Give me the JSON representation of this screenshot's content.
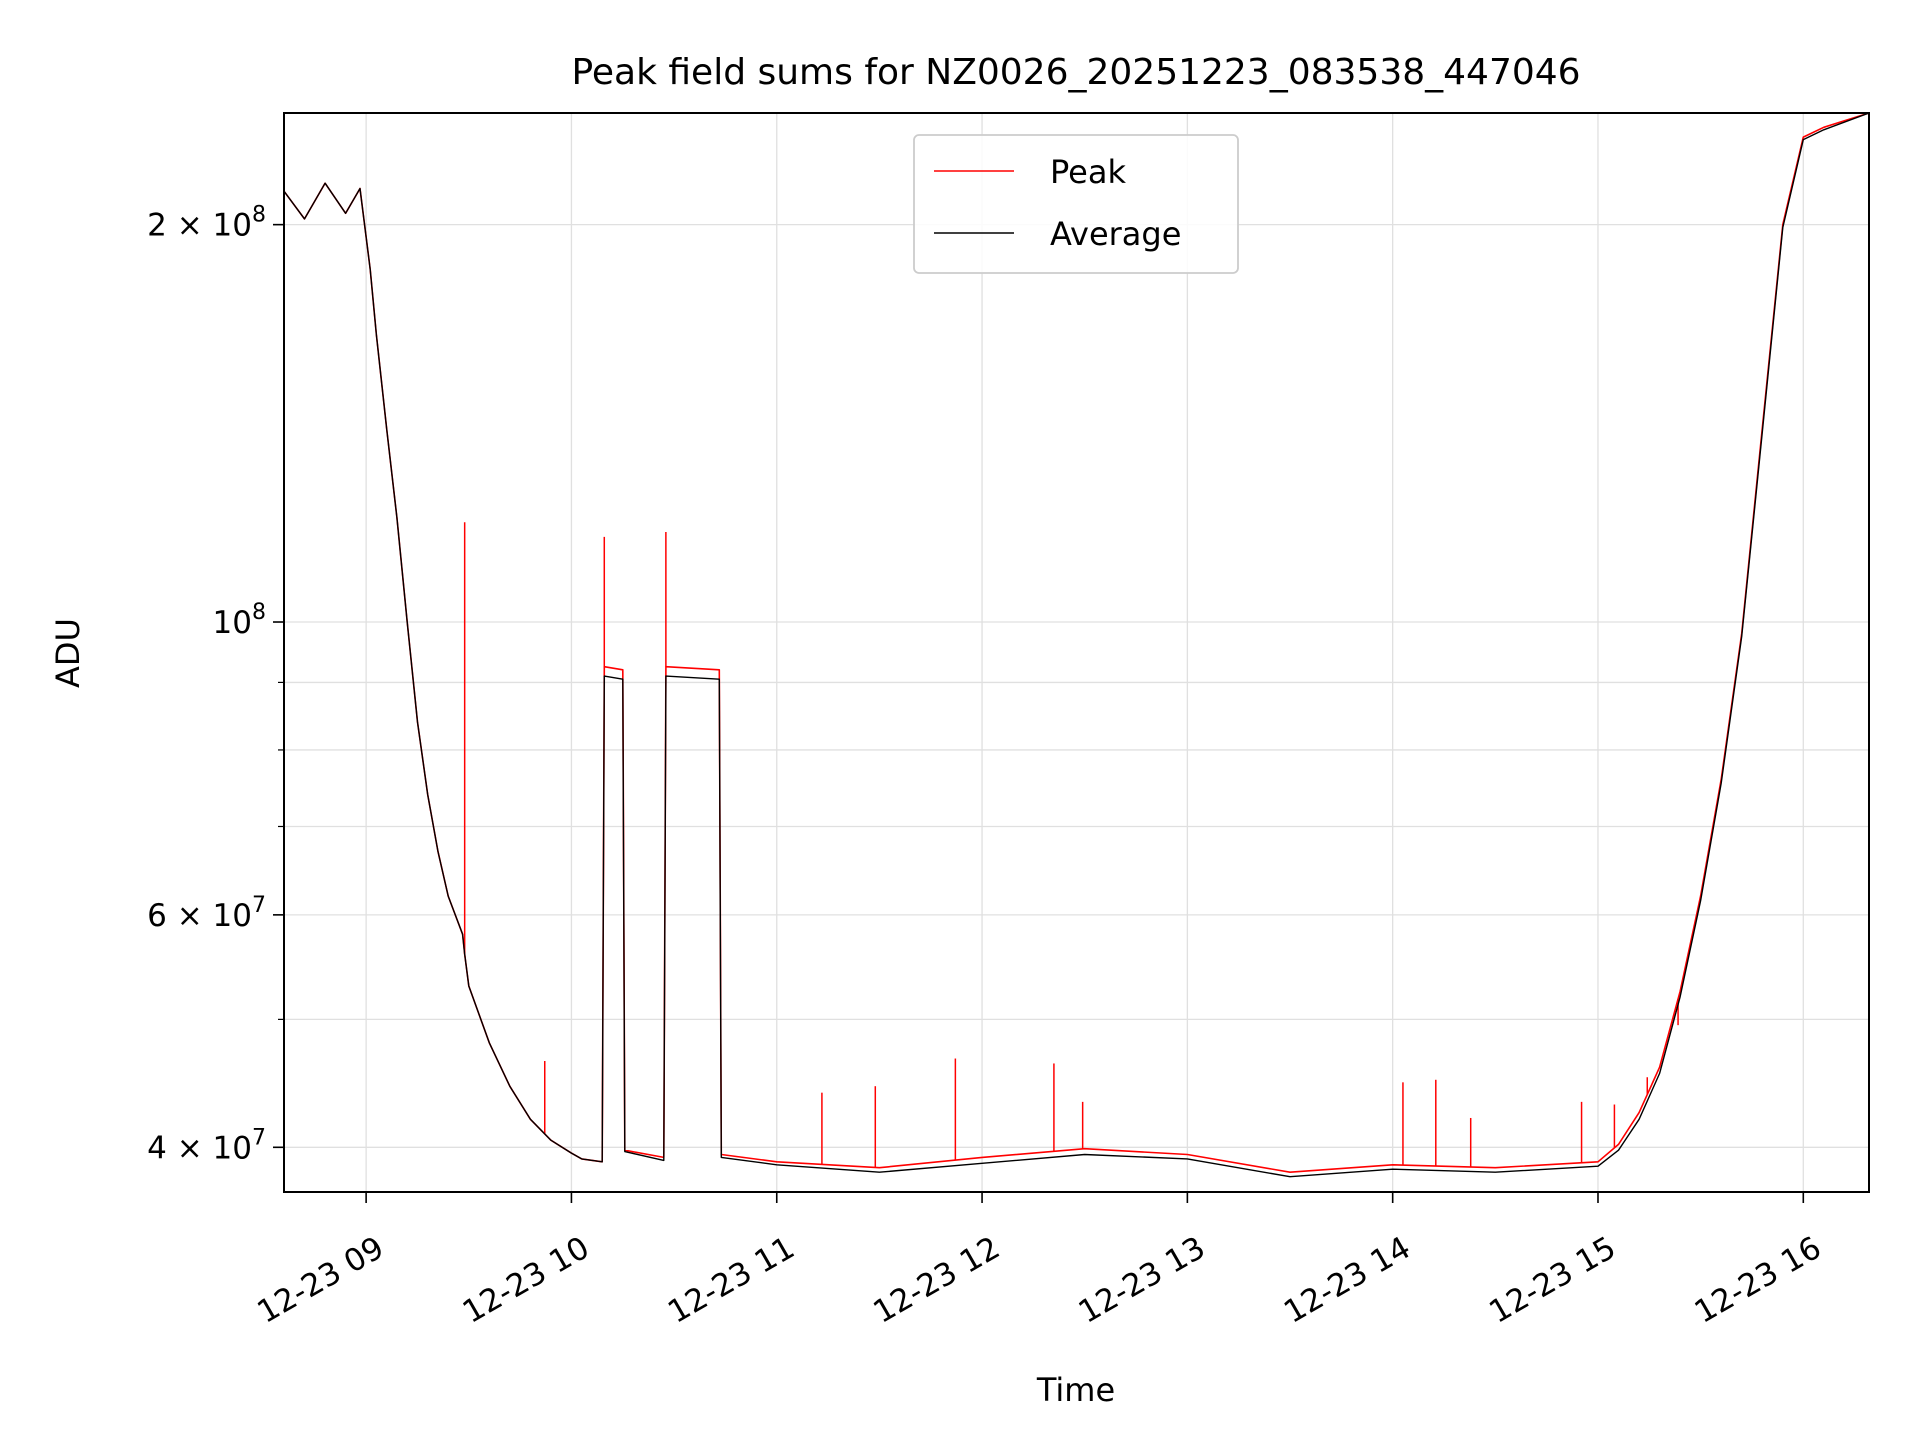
{
  "chart_data": {
    "type": "line",
    "title": "Peak field sums for NZ0026_20251223_083538_447046",
    "xlabel": "Time",
    "ylabel": "ADU",
    "yscale": "log",
    "grid": true,
    "legend_position": "top-center",
    "xlim": [
      8.6,
      16.32
    ],
    "ylim": [
      37000000,
      243000000
    ],
    "x_ticks": [
      {
        "value": 9,
        "label": "12-23 09"
      },
      {
        "value": 10,
        "label": "12-23 10"
      },
      {
        "value": 11,
        "label": "12-23 11"
      },
      {
        "value": 12,
        "label": "12-23 12"
      },
      {
        "value": 13,
        "label": "12-23 13"
      },
      {
        "value": 14,
        "label": "12-23 14"
      },
      {
        "value": 15,
        "label": "12-23 15"
      },
      {
        "value": 16,
        "label": "12-23 16"
      }
    ],
    "y_ticks": [
      {
        "value": 40000000,
        "mantissa": "4",
        "exponent": "7"
      },
      {
        "value": 60000000,
        "mantissa": "6",
        "exponent": "7"
      },
      {
        "value": 100000000,
        "mantissa": "",
        "exponent": "8"
      },
      {
        "value": 200000000,
        "mantissa": "2",
        "exponent": "8"
      }
    ],
    "y_minor_ticks": [
      50000000,
      70000000,
      80000000,
      90000000
    ],
    "series": [
      {
        "name": "Peak",
        "color": "#ff0000",
        "x": [
          8.6,
          8.7,
          8.8,
          8.9,
          8.97,
          9.02,
          9.05,
          9.1,
          9.15,
          9.2,
          9.25,
          9.3,
          9.35,
          9.4,
          9.47,
          9.48,
          9.5,
          9.6,
          9.7,
          9.8,
          9.9,
          10.0,
          10.05,
          10.15,
          10.16,
          10.25,
          10.26,
          10.45,
          10.46,
          10.72,
          10.73,
          11.0,
          11.5,
          12.0,
          12.5,
          13.0,
          13.5,
          14.0,
          14.5,
          15.0,
          15.1,
          15.2,
          15.3,
          15.4,
          15.5,
          15.6,
          15.7,
          15.8,
          15.9,
          16.0,
          16.1,
          16.32
        ],
        "y": [
          212000000,
          202000000,
          215000000,
          204000000,
          213000000,
          185000000,
          165000000,
          140000000,
          120000000,
          100000000,
          84000000,
          74000000,
          67000000,
          62000000,
          58000000,
          56000000,
          53000000,
          48000000,
          44500000,
          42000000,
          40500000,
          39600000,
          39200000,
          39000000,
          92500000,
          92000000,
          39800000,
          39300000,
          92500000,
          92000000,
          39500000,
          39000000,
          38600000,
          39300000,
          39900000,
          39500000,
          38300000,
          38800000,
          38600000,
          39000000,
          40200000,
          42500000,
          46000000,
          52500000,
          62000000,
          76000000,
          98000000,
          140000000,
          200000000,
          233000000,
          237000000,
          243000000
        ]
      },
      {
        "name": "Average",
        "color": "#000000",
        "x": [
          8.6,
          8.7,
          8.8,
          8.9,
          8.97,
          9.02,
          9.05,
          9.1,
          9.15,
          9.2,
          9.25,
          9.3,
          9.35,
          9.4,
          9.47,
          9.48,
          9.5,
          9.6,
          9.7,
          9.8,
          9.9,
          10.0,
          10.05,
          10.15,
          10.16,
          10.25,
          10.26,
          10.45,
          10.46,
          10.72,
          10.73,
          11.0,
          11.5,
          12.0,
          12.5,
          13.0,
          13.5,
          14.0,
          14.5,
          15.0,
          15.1,
          15.2,
          15.3,
          15.4,
          15.5,
          15.6,
          15.7,
          15.8,
          15.9,
          16.0,
          16.1,
          16.32
        ],
        "y": [
          212000000,
          202000000,
          215000000,
          204000000,
          213000000,
          185000000,
          165000000,
          140000000,
          120000000,
          100000000,
          84000000,
          74000000,
          67000000,
          62000000,
          58000000,
          56000000,
          53000000,
          48000000,
          44500000,
          42000000,
          40500000,
          39600000,
          39200000,
          39000000,
          91000000,
          90500000,
          39700000,
          39100000,
          91000000,
          90500000,
          39300000,
          38800000,
          38300000,
          38900000,
          39500000,
          39200000,
          38000000,
          38500000,
          38300000,
          38700000,
          39800000,
          42000000,
          45500000,
          52000000,
          61500000,
          75500000,
          97500000,
          139000000,
          199000000,
          232000000,
          236000000,
          243000000
        ]
      }
    ],
    "spikes": [
      {
        "x": 9.48,
        "y": 119000000
      },
      {
        "x": 10.16,
        "y": 116000000
      },
      {
        "x": 10.46,
        "y": 117000000
      },
      {
        "x": 9.87,
        "y": 46500000
      },
      {
        "x": 11.22,
        "y": 44000000
      },
      {
        "x": 11.48,
        "y": 44500000
      },
      {
        "x": 11.87,
        "y": 46700000
      },
      {
        "x": 12.35,
        "y": 46300000
      },
      {
        "x": 12.49,
        "y": 43300000
      },
      {
        "x": 14.05,
        "y": 44800000
      },
      {
        "x": 14.21,
        "y": 45000000
      },
      {
        "x": 14.38,
        "y": 42100000
      },
      {
        "x": 14.92,
        "y": 43300000
      },
      {
        "x": 15.08,
        "y": 43100000
      },
      {
        "x": 15.24,
        "y": 45200000
      },
      {
        "x": 15.39,
        "y": 49500000
      }
    ]
  }
}
